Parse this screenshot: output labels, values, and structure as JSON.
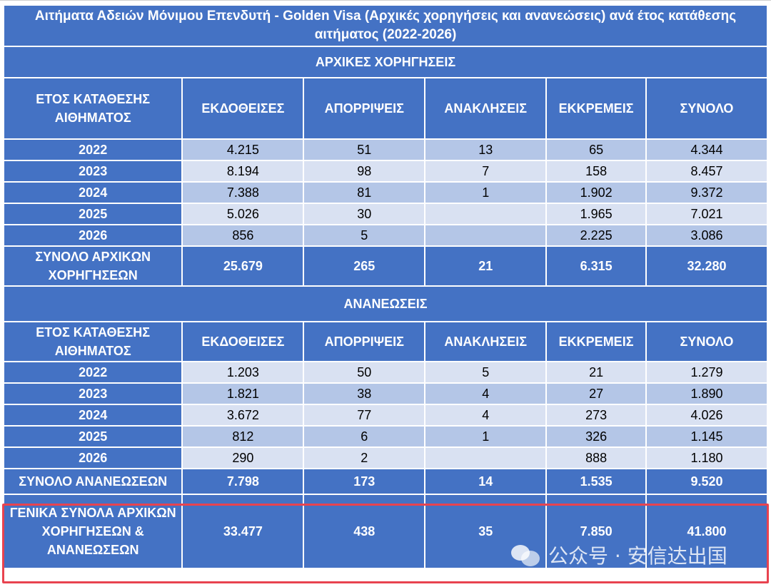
{
  "title": "Αιτήματα Αδειών Μόνιμου Επενδυτή - Golden Visa (Αρχικές χορηγήσεις και ανανεώσεις) ανά έτος κατάθεσης αιτήματος (2022-2026)",
  "colors": {
    "header": "#4472c4",
    "cell": "#b4c6e7",
    "cell_alt": "#d9e1f2",
    "highlight": "#e8434f"
  },
  "initial": {
    "section_label": "ΑΡΧΙΚΕΣ ΧΟΡΗΓΗΣΕΙΣ",
    "headers": [
      "ΕΤΟΣ ΚΑΤΑΘΕΣΗΣ ΑΙΘΗΜΑΤΟΣ",
      "ΕΚΔΟΘΕΙΣΕΣ",
      "ΑΠΟΡΡΙΨΕΙΣ",
      "ΑΝΑΚΛΗΣΕΙΣ",
      "ΕΚΚΡΕΜΕΙΣ",
      "ΣΥΝΟΛΟ"
    ],
    "rows": [
      [
        "2022",
        "4.215",
        "51",
        "13",
        "65",
        "4.344"
      ],
      [
        "2023",
        "8.194",
        "98",
        "7",
        "158",
        "8.457"
      ],
      [
        "2024",
        "7.388",
        "81",
        "1",
        "1.902",
        "9.372"
      ],
      [
        "2025",
        "5.026",
        "30",
        "",
        "1.965",
        "7.021"
      ],
      [
        "2026",
        "856",
        "5",
        "",
        "2.225",
        "3.086"
      ]
    ],
    "total": [
      "ΣΥΝΟΛΟ ΑΡΧΙΚΩΝ ΧΟΡΗΓΗΣΕΩΝ",
      "25.679",
      "265",
      "21",
      "6.315",
      "32.280"
    ]
  },
  "renewals": {
    "section_label": "ΑΝΑΝΕΩΣΕΙΣ",
    "headers": [
      "ΕΤΟΣ ΚΑΤΑΘΕΣΗΣ ΑΙΘΗΜΑΤΟΣ",
      "ΕΚΔΟΘΕΙΣΕΣ",
      "ΑΠΟΡΡΙΨΕΙΣ",
      "ΑΝΑΚΛΗΣΕΙΣ",
      "ΕΚΚΡΕΜΕΙΣ",
      "ΣΥΝΟΛΟ"
    ],
    "rows": [
      [
        "2022",
        "1.203",
        "50",
        "5",
        "21",
        "1.279"
      ],
      [
        "2023",
        "1.821",
        "38",
        "4",
        "27",
        "1.890"
      ],
      [
        "2024",
        "3.672",
        "77",
        "4",
        "273",
        "4.026"
      ],
      [
        "2025",
        "812",
        "6",
        "1",
        "326",
        "1.145"
      ],
      [
        "2026",
        "290",
        "2",
        "",
        "888",
        "1.180"
      ]
    ],
    "total": [
      "ΣΥΝΟΛΟ ΑΝΑΝΕΩΣΕΩΝ",
      "7.798",
      "173",
      "14",
      "1.535",
      "9.520"
    ]
  },
  "grand_total": [
    "ΓΕΝΙΚΑ ΣΥΝΟΛΑ ΑΡΧΙΚΩΝ ΧΟΡΗΓΗΣΕΩΝ & ΑΝΑΝΕΩΣΕΩΝ",
    "33.477",
    "438",
    "35",
    "7.850",
    "41.800"
  ],
  "watermark": {
    "text": "公众号 · 安信达出国",
    "icon": "wechat-icon"
  }
}
